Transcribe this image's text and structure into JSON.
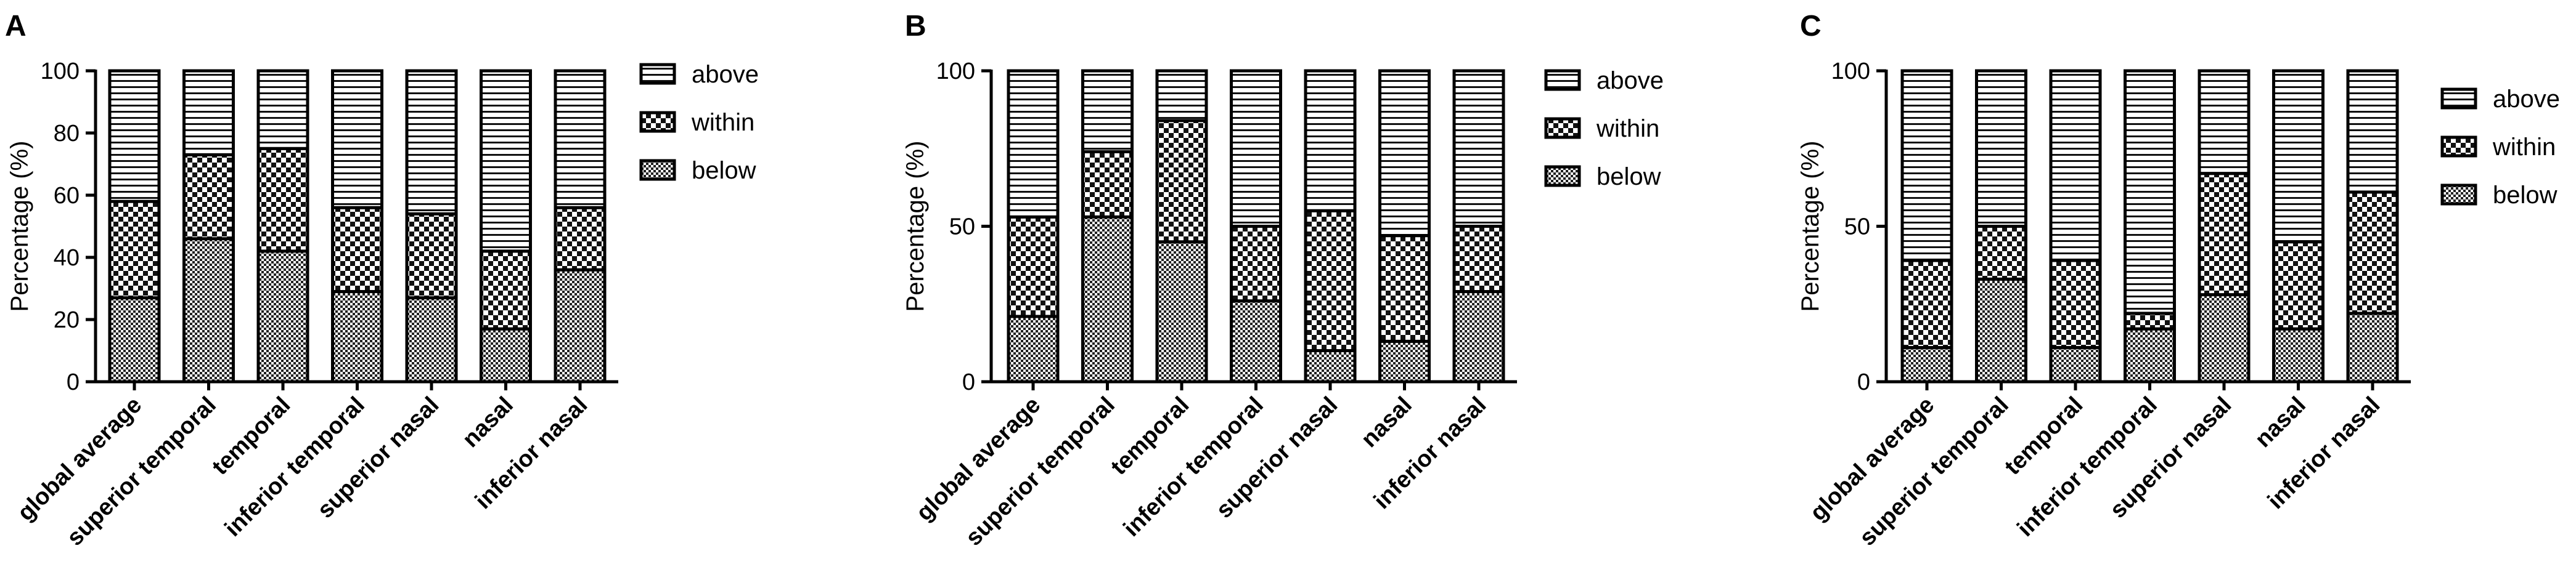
{
  "chart_data": [
    {
      "type": "bar",
      "stacked": true,
      "panel_label": "A",
      "categories": [
        "global average",
        "superior temporal",
        "temporal",
        "inferior temporal",
        "superior nasal",
        "nasal",
        "inferior nasal"
      ],
      "series": [
        {
          "name": "below",
          "values": [
            27,
            46,
            42,
            29,
            27,
            17,
            36
          ]
        },
        {
          "name": "within",
          "values": [
            31,
            27,
            33,
            27,
            27,
            25,
            20
          ]
        },
        {
          "name": "above",
          "values": [
            42,
            27,
            25,
            44,
            46,
            58,
            44
          ]
        }
      ],
      "legend_order": [
        "above",
        "within",
        "below"
      ],
      "ylabel": "Percentage (%)",
      "xlabel": "",
      "ylim": [
        0,
        100
      ],
      "yticks": [
        0,
        20,
        40,
        60,
        80,
        100
      ],
      "grid": false,
      "legend_position": "top-right"
    },
    {
      "type": "bar",
      "stacked": true,
      "panel_label": "B",
      "categories": [
        "global average",
        "superior temporal",
        "temporal",
        "inferior temporal",
        "superior nasal",
        "nasal",
        "inferior nasal"
      ],
      "series": [
        {
          "name": "below",
          "values": [
            21,
            53,
            45,
            26,
            10,
            13,
            29
          ]
        },
        {
          "name": "within",
          "values": [
            32,
            21,
            39,
            24,
            45,
            34,
            21
          ]
        },
        {
          "name": "above",
          "values": [
            47,
            26,
            16,
            50,
            45,
            53,
            50
          ]
        }
      ],
      "legend_order": [
        "above",
        "within",
        "below"
      ],
      "ylabel": "Percentage (%)",
      "xlabel": "",
      "ylim": [
        0,
        100
      ],
      "yticks": [
        0,
        50,
        100
      ],
      "grid": false,
      "legend_position": "top-right"
    },
    {
      "type": "bar",
      "stacked": true,
      "panel_label": "C",
      "categories": [
        "global average",
        "superior temporal",
        "temporal",
        "inferior temporal",
        "superior nasal",
        "nasal",
        "inferior nasal"
      ],
      "series": [
        {
          "name": "below",
          "values": [
            11,
            33,
            11,
            17,
            28,
            17,
            22
          ]
        },
        {
          "name": "within",
          "values": [
            28,
            17,
            28,
            5,
            39,
            28,
            39
          ]
        },
        {
          "name": "above",
          "values": [
            61,
            50,
            61,
            78,
            33,
            55,
            39
          ]
        }
      ],
      "legend_order": [
        "above",
        "within",
        "below"
      ],
      "ylabel": "Percentage (%)",
      "xlabel": "",
      "ylim": [
        0,
        100
      ],
      "yticks": [
        0,
        50,
        100
      ],
      "grid": false,
      "legend_position": "top-right"
    }
  ]
}
